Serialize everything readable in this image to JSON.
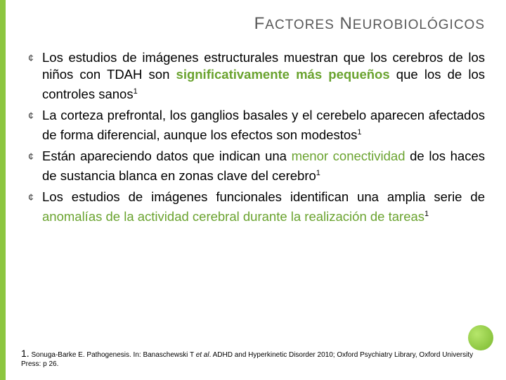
{
  "colors": {
    "accent": "#8cc63f",
    "highlight": "#6aa32f",
    "title": "#595959",
    "text": "#000000",
    "background": "#ffffff"
  },
  "title": {
    "first_cap": "F",
    "first_rest": "ACTORES",
    "second_cap": "N",
    "second_rest": "EUROBIOLÓGICOS"
  },
  "bullets": [
    {
      "pre": "Los estudios de imágenes estructurales muestran que los cerebros de los niños con TDAH son ",
      "hl": "significativamente más pequeños",
      "post": " que los de los controles sanos",
      "sup": "1",
      "hl_bold": true
    },
    {
      "pre": "La corteza prefrontal, los ganglios basales y el cerebelo aparecen afectados de forma diferencial, aunque los efectos son modestos",
      "hl": "",
      "post": "",
      "sup": "1",
      "hl_bold": false
    },
    {
      "pre": "Están apareciendo datos que indican una ",
      "hl": "menor conectividad",
      "post": " de los haces de sustancia blanca en zonas clave del cerebro",
      "sup": "1",
      "hl_bold": false
    },
    {
      "pre": "Los estudios de imágenes funcionales identifican una amplia serie de ",
      "hl": "anomalías de la actividad cerebral durante la realización de tareas",
      "post": "",
      "sup": "1",
      "hl_bold": false
    }
  ],
  "footnote": {
    "num": "1.",
    "text_a": " Sonuga-Barke E. Pathogenesis. In: Banaschewski T ",
    "text_it": "et al",
    "text_b": ". ADHD and Hyperkinetic Disorder 2010; Oxford Psychiatry Library, Oxford University Press: p 26."
  }
}
